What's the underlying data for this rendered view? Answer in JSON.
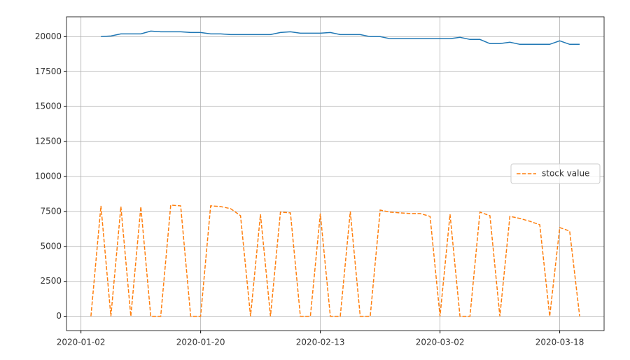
{
  "chart_data": {
    "type": "line",
    "x": [
      1,
      2,
      3,
      4,
      5,
      6,
      7,
      8,
      9,
      10,
      11,
      12,
      13,
      14,
      15,
      16,
      17,
      18,
      19,
      20,
      21,
      22,
      23,
      24,
      25,
      26,
      27,
      28,
      29,
      30,
      31,
      32,
      33,
      34,
      35,
      36,
      37,
      38,
      39,
      40,
      41,
      42,
      43,
      44,
      45,
      46,
      47,
      48,
      49,
      50
    ],
    "series": [
      {
        "color": "#1f77b4",
        "dash": "solid",
        "values": [
          null,
          20000,
          20050,
          20200,
          20200,
          20200,
          20400,
          20350,
          20350,
          20350,
          20300,
          20300,
          20200,
          20200,
          20150,
          20150,
          20150,
          20150,
          20150,
          20300,
          20350,
          20250,
          20250,
          20250,
          20300,
          20150,
          20150,
          20150,
          20000,
          20000,
          19850,
          19850,
          19850,
          19850,
          19850,
          19850,
          19850,
          19950,
          19800,
          19800,
          19500,
          19500,
          19600,
          19450,
          19450,
          19450,
          19450,
          19700,
          19450,
          19450
        ]
      },
      {
        "name": "stock value",
        "color": "#ff7f0e",
        "dash": "dashed",
        "values": [
          0,
          7900,
          0,
          7850,
          0,
          7850,
          0,
          0,
          7950,
          7900,
          0,
          0,
          7900,
          7850,
          7700,
          7200,
          0,
          7300,
          0,
          7450,
          7400,
          0,
          0,
          7350,
          0,
          0,
          7500,
          0,
          0,
          7600,
          7450,
          7400,
          7350,
          7350,
          7150,
          0,
          7300,
          0,
          0,
          7450,
          7200,
          0,
          7150,
          7000,
          6800,
          6550,
          0,
          6350,
          6100,
          0
        ]
      }
    ],
    "xlim": [
      -1.45,
      52.45
    ],
    "xticks": [
      {
        "value": 0,
        "label": "2020-01-02"
      },
      {
        "value": 12,
        "label": "2020-01-20"
      },
      {
        "value": 24,
        "label": "2020-02-13"
      },
      {
        "value": 36,
        "label": "2020-03-02"
      },
      {
        "value": 48,
        "label": "2020-03-18"
      }
    ],
    "ylim": [
      -1020,
      21420
    ],
    "yticks": [
      0,
      2500,
      5000,
      7500,
      10000,
      12500,
      15000,
      17500,
      20000
    ],
    "grid": true,
    "legend": "center right"
  }
}
